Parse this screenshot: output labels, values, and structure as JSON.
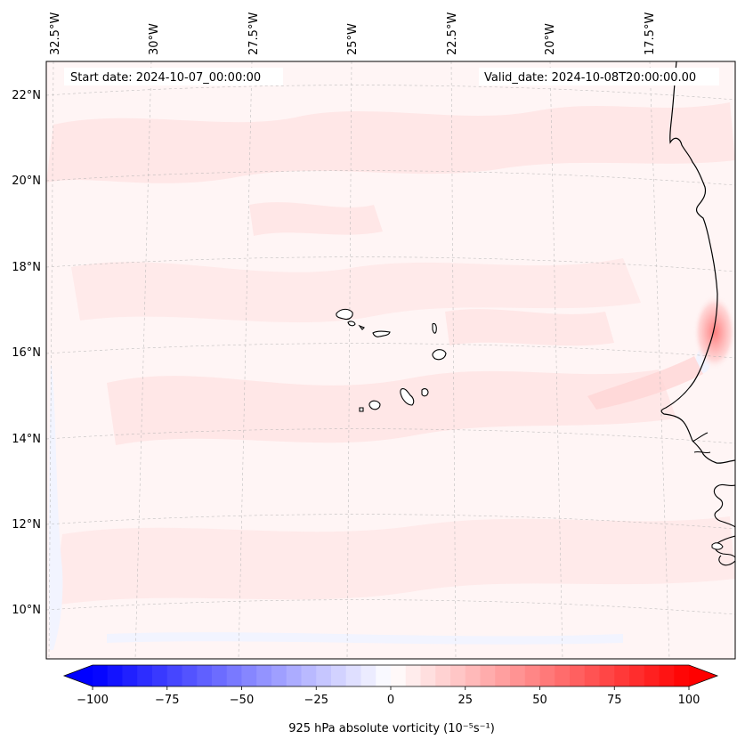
{
  "map": {
    "annotations": {
      "start_date": "Start date: 2024-10-07_00:00:00",
      "valid_date": "Valid_date: 2024-10-08T20:00:00.00"
    },
    "lon_labels": [
      "32.5°W",
      "30°W",
      "27.5°W",
      "25°W",
      "22.5°W",
      "20°W",
      "17.5°W"
    ],
    "lat_labels": [
      "22°N",
      "20°N",
      "18°N",
      "16°N",
      "14°N",
      "12°N",
      "10°N"
    ],
    "colors": {
      "background_field": "#fff5f5",
      "coast": "#000000",
      "grid": "#b0b0b0"
    }
  },
  "colorbar": {
    "label": "925 hPa absolute vorticity (10⁻⁵s⁻¹)",
    "ticks": [
      "−100",
      "−75",
      "−50",
      "−25",
      "0",
      "25",
      "50",
      "75",
      "100"
    ],
    "colors": {
      "negative_end": "#0000ff",
      "center": "#ffffff",
      "positive_end": "#ff0000"
    }
  }
}
